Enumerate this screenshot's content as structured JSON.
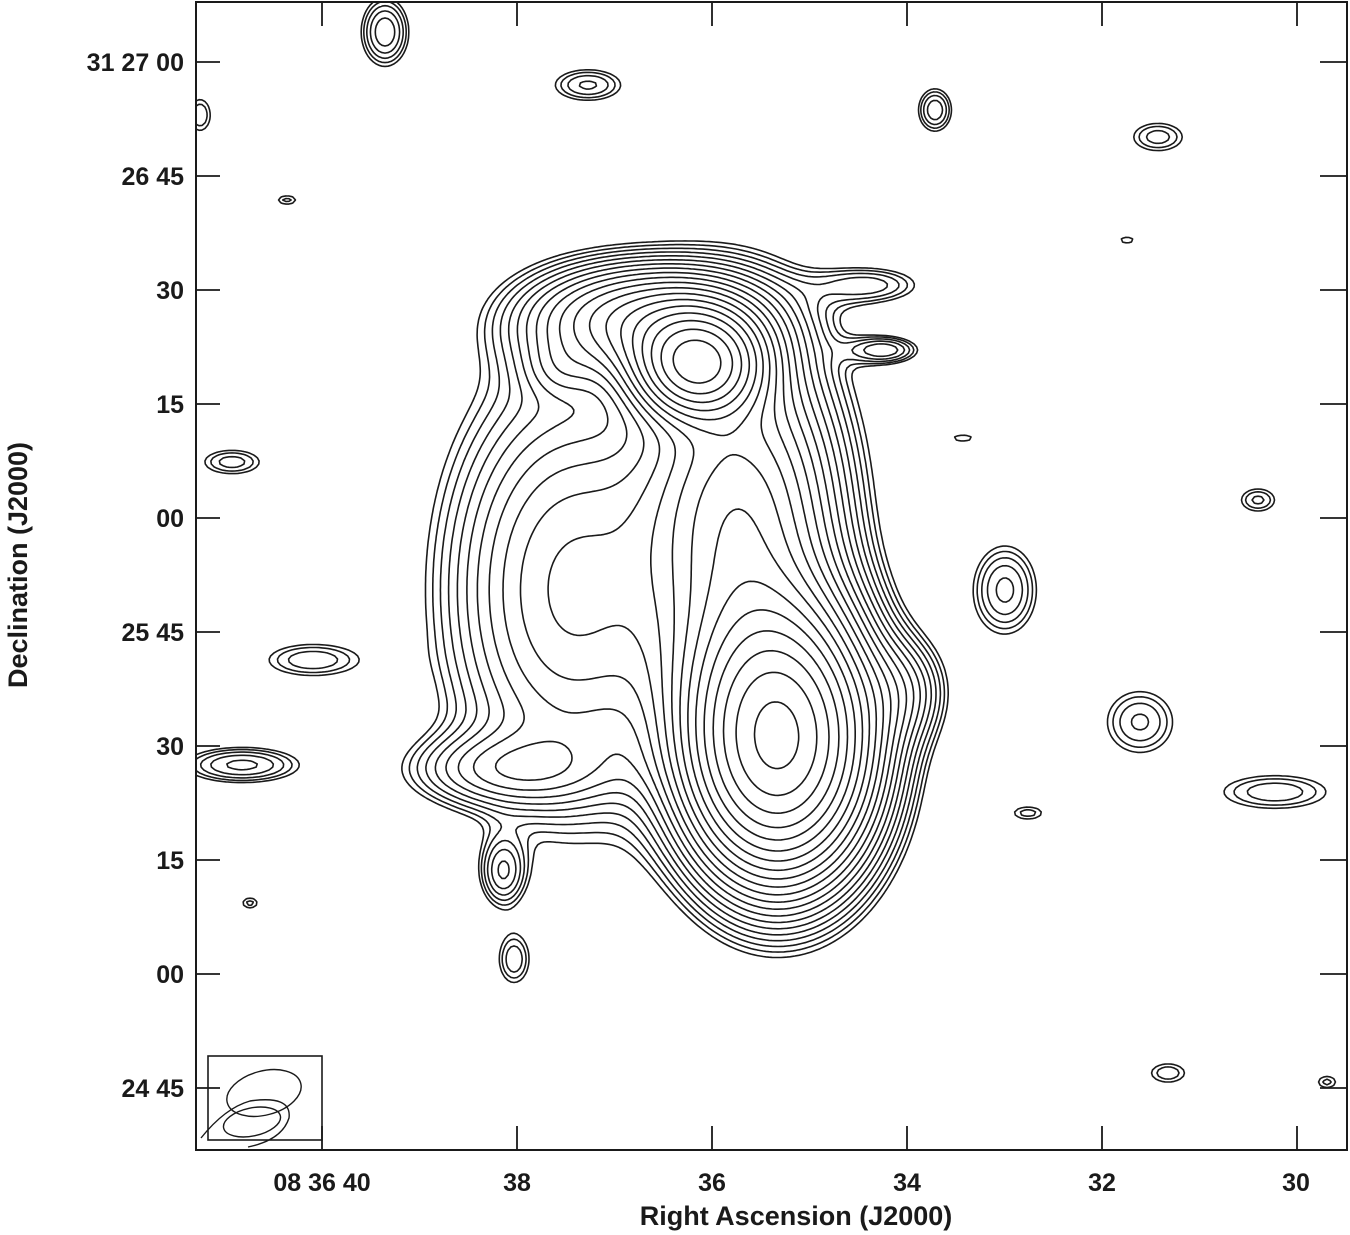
{
  "chart_data": {
    "type": "contour",
    "title": "",
    "xlabel": "Right Ascension (J2000)",
    "ylabel": "Declination (J2000)",
    "x_ticks": [
      {
        "label": "08 36 40",
        "value_sec": 40
      },
      {
        "label": "38",
        "value_sec": 38
      },
      {
        "label": "36",
        "value_sec": 36
      },
      {
        "label": "34",
        "value_sec": 34
      },
      {
        "label": "32",
        "value_sec": 32
      },
      {
        "label": "30",
        "value_sec": 30
      }
    ],
    "y_ticks": [
      {
        "label": "31 27 00",
        "value_arcsec": 0
      },
      {
        "label": "26 45",
        "value_arcsec": -15
      },
      {
        "label": "30",
        "value_arcsec": -30
      },
      {
        "label": "15",
        "value_arcsec": -45
      },
      {
        "label": "00",
        "value_arcsec": -60
      },
      {
        "label": "25 45",
        "value_arcsec": -75
      },
      {
        "label": "30",
        "value_arcsec": -90
      },
      {
        "label": "15",
        "value_arcsec": -105
      },
      {
        "label": "00",
        "value_arcsec": -120
      },
      {
        "label": "24 45",
        "value_arcsec": -135
      }
    ],
    "xlim_ra": [
      "08 36 41.3",
      "08 36 29.5"
    ],
    "ylim_dec": [
      "31 24 37",
      "31 27 08"
    ],
    "grid": false,
    "legend": "none",
    "beam_inset": "bottom-left",
    "line_color": "#1a1a1a"
  }
}
